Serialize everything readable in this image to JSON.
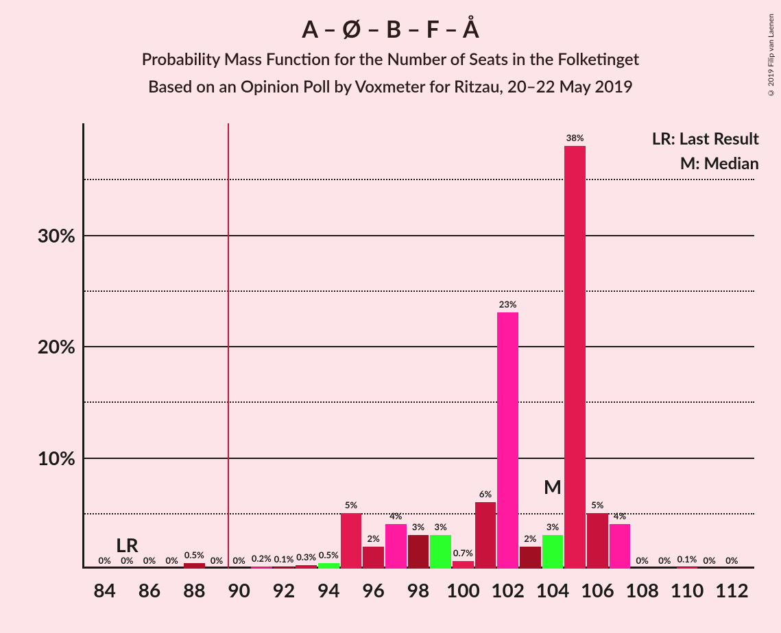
{
  "title": "A – Ø – B – F – Å",
  "title_fontsize": 34,
  "subtitle_line1": "Probability Mass Function for the Number of Seats in the Folketinget",
  "subtitle_line2": "Based on an Opinion Poll by Voxmeter for Ritzau, 20–22 May 2019",
  "subtitle_fontsize": 24,
  "credit": "© 2019 Filip van Laenen",
  "background_color": "#fce4e9",
  "text_color": "#1a1a1a",
  "legend": {
    "lr": "LR: Last Result",
    "m": "M: Median",
    "fontsize": 24
  },
  "markers": {
    "lr_label": "LR",
    "lr_x": 85,
    "lr_line_x": 89.5,
    "lr_line_color": "#c81432",
    "m_label": "M",
    "m_x": 104,
    "marker_fontsize": 28
  },
  "chart": {
    "type": "bar",
    "xlim": [
      83,
      113
    ],
    "ylim": [
      0,
      40
    ],
    "x_axis_start": 84,
    "x_axis_end": 112,
    "xtick_step": 2,
    "xtick_labels": [
      "84",
      "86",
      "88",
      "90",
      "92",
      "94",
      "96",
      "98",
      "100",
      "102",
      "104",
      "106",
      "108",
      "110",
      "112"
    ],
    "xtick_fontsize": 28,
    "ytick_major": [
      10,
      20,
      30
    ],
    "ytick_minor": [
      5,
      15,
      25,
      35
    ],
    "ytick_labels": [
      "10%",
      "20%",
      "30%"
    ],
    "ytick_fontsize": 28,
    "grid_major_color": "#1a1a1a",
    "grid_minor_color": "#1a1a1a",
    "bar_width_ratio": 0.94,
    "bar_label_fontsize": 13,
    "bars": [
      {
        "x": 84,
        "value": 0,
        "label": "0%",
        "color": "#ae0f28"
      },
      {
        "x": 85,
        "value": 0,
        "label": "0%",
        "color": "#e61a80"
      },
      {
        "x": 86,
        "value": 0,
        "label": "0%",
        "color": "#ae0f28"
      },
      {
        "x": 87,
        "value": 0,
        "label": "0%",
        "color": "#e61a80"
      },
      {
        "x": 88,
        "value": 0.5,
        "label": "0.5%",
        "color": "#ae0f28"
      },
      {
        "x": 89,
        "value": 0,
        "label": "0%",
        "color": "#e61a80"
      },
      {
        "x": 90,
        "value": 0,
        "label": "0%",
        "color": "#ae0f28"
      },
      {
        "x": 91,
        "value": 0.2,
        "label": "0.2%",
        "color": "#e61a80"
      },
      {
        "x": 92,
        "value": 0.1,
        "label": "0.1%",
        "color": "#ae0f28"
      },
      {
        "x": 93,
        "value": 0.3,
        "label": "0.3%",
        "color": "#c8143c"
      },
      {
        "x": 94,
        "value": 0.5,
        "label": "0.5%",
        "color": "#2bff2b"
      },
      {
        "x": 95,
        "value": 5,
        "label": "5%",
        "color": "#e21a50"
      },
      {
        "x": 96,
        "value": 2,
        "label": "2%",
        "color": "#c8143c"
      },
      {
        "x": 97,
        "value": 4,
        "label": "4%",
        "color": "#ff1aa0"
      },
      {
        "x": 98,
        "value": 3,
        "label": "3%",
        "color": "#a00f22"
      },
      {
        "x": 99,
        "value": 3,
        "label": "3%",
        "color": "#2bff2b"
      },
      {
        "x": 100,
        "value": 0.7,
        "label": "0.7%",
        "color": "#e21a50"
      },
      {
        "x": 101,
        "value": 6,
        "label": "6%",
        "color": "#c8143c"
      },
      {
        "x": 102,
        "value": 23,
        "label": "23%",
        "color": "#ff1aa0"
      },
      {
        "x": 103,
        "value": 2,
        "label": "2%",
        "color": "#a00f22"
      },
      {
        "x": 104,
        "value": 3,
        "label": "3%",
        "color": "#2bff2b"
      },
      {
        "x": 105,
        "value": 38,
        "label": "38%",
        "color": "#e21a50"
      },
      {
        "x": 106,
        "value": 5,
        "label": "5%",
        "color": "#c8143c"
      },
      {
        "x": 107,
        "value": 4,
        "label": "4%",
        "color": "#ff1aa0"
      },
      {
        "x": 108,
        "value": 0,
        "label": "0%",
        "color": "#a00f22"
      },
      {
        "x": 109,
        "value": 0,
        "label": "0%",
        "color": "#2bff2b"
      },
      {
        "x": 110,
        "value": 0.1,
        "label": "0.1%",
        "color": "#e21a50"
      },
      {
        "x": 111,
        "value": 0,
        "label": "0%",
        "color": "#c8143c"
      },
      {
        "x": 112,
        "value": 0,
        "label": "0%",
        "color": "#ff1aa0"
      }
    ]
  }
}
